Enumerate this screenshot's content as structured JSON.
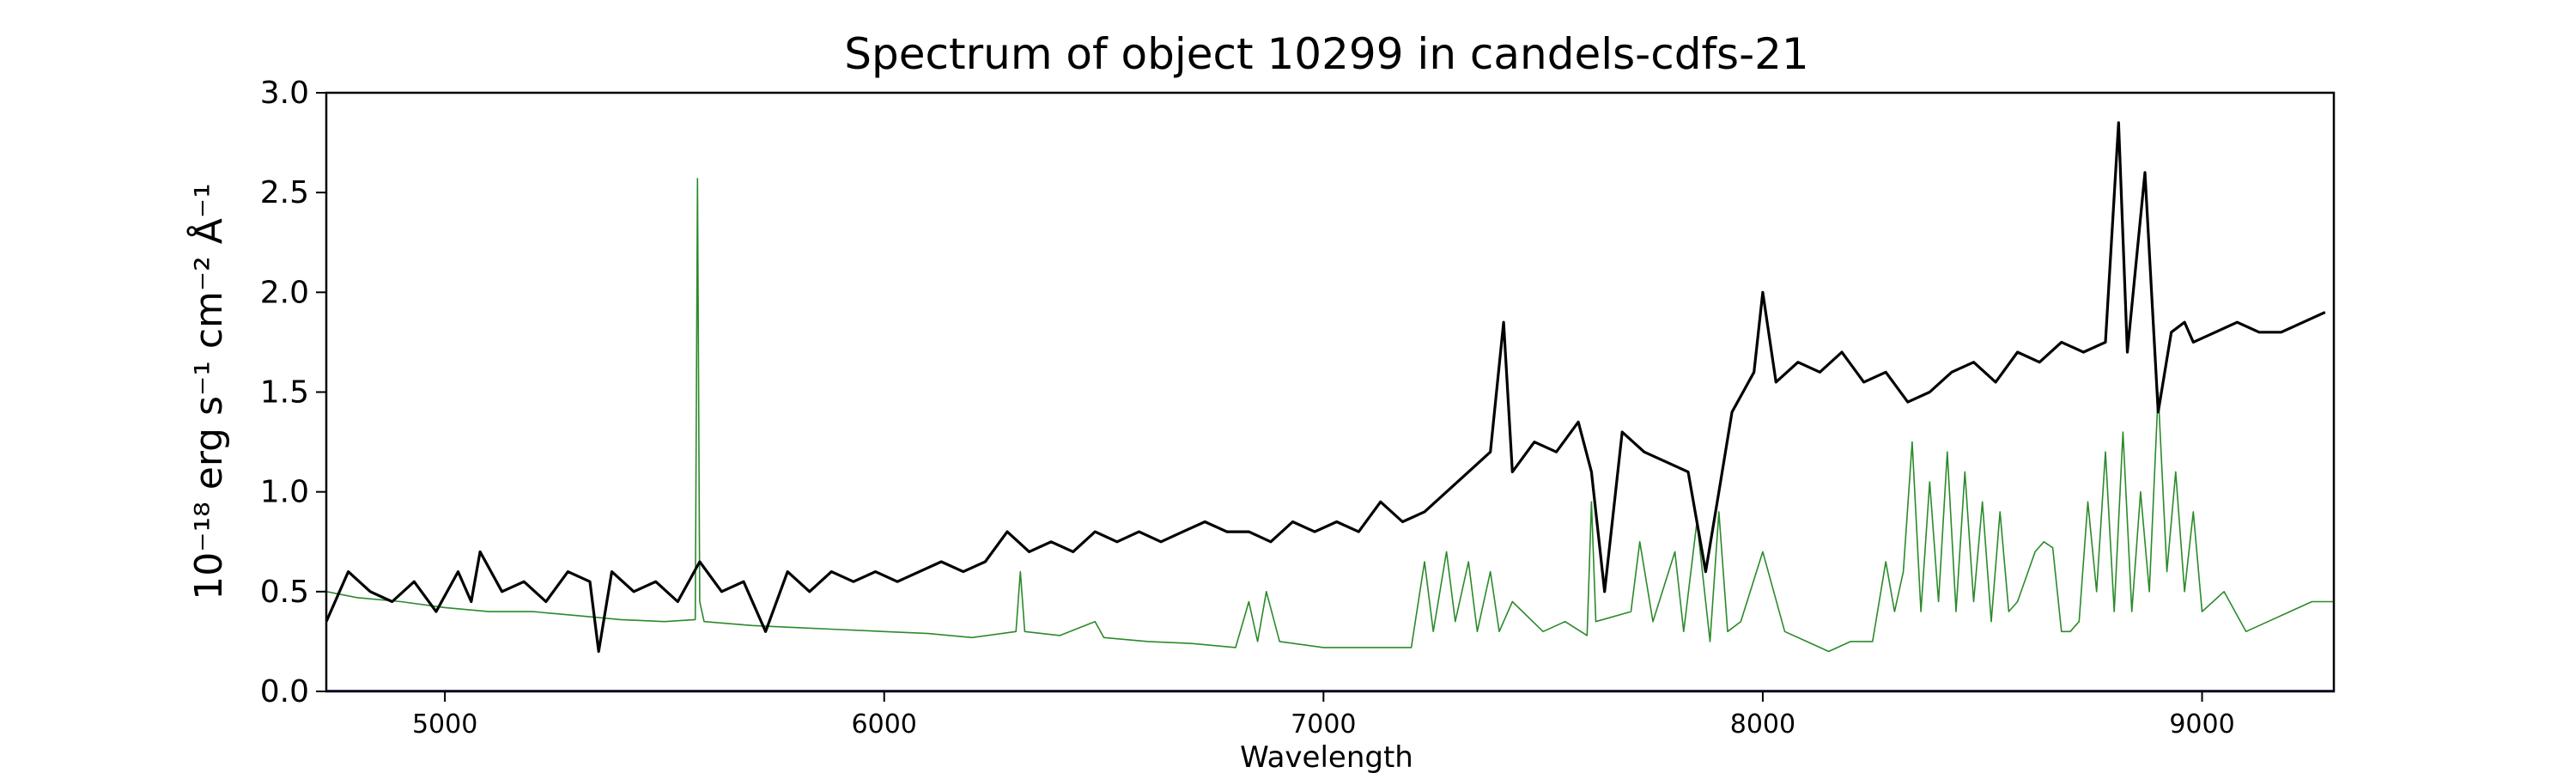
{
  "chart_data": {
    "type": "line",
    "title": "Spectrum of object 10299 in candels-cdfs-21",
    "xlabel": "Wavelength",
    "ylabel": "10⁻¹⁸ erg s⁻¹ cm⁻² Å⁻¹",
    "xlim": [
      4730,
      9300
    ],
    "ylim": [
      0,
      3.0
    ],
    "xticks": [
      5000,
      6000,
      7000,
      8000,
      9000
    ],
    "yticks": [
      0.0,
      0.5,
      1.0,
      1.5,
      2.0,
      2.5,
      3.0
    ],
    "ytick_labels": [
      "0.0",
      "0.5",
      "1.0",
      "1.5",
      "2.0",
      "2.5",
      "3.0"
    ],
    "grid": false,
    "legend": "none",
    "series": [
      {
        "color": "#000000",
        "role": "flux",
        "x": [
          4730,
          4780,
          4830,
          4880,
          4930,
          4980,
          5030,
          5060,
          5080,
          5130,
          5180,
          5230,
          5280,
          5330,
          5350,
          5380,
          5430,
          5480,
          5530,
          5580,
          5630,
          5680,
          5730,
          5780,
          5830,
          5880,
          5930,
          5980,
          6030,
          6080,
          6130,
          6180,
          6230,
          6280,
          6330,
          6380,
          6430,
          6480,
          6530,
          6580,
          6630,
          6680,
          6730,
          6780,
          6830,
          6880,
          6930,
          6980,
          7030,
          7080,
          7130,
          7180,
          7230,
          7280,
          7330,
          7380,
          7410,
          7430,
          7480,
          7530,
          7580,
          7610,
          7640,
          7680,
          7730,
          7780,
          7830,
          7870,
          7900,
          7930,
          7980,
          8000,
          8030,
          8080,
          8130,
          8180,
          8230,
          8280,
          8330,
          8380,
          8430,
          8480,
          8530,
          8580,
          8630,
          8680,
          8730,
          8780,
          8810,
          8830,
          8870,
          8900,
          8930,
          8960,
          8980,
          9030,
          9080,
          9130,
          9180,
          9230,
          9280
        ],
        "values": [
          0.35,
          0.6,
          0.5,
          0.45,
          0.55,
          0.4,
          0.6,
          0.45,
          0.7,
          0.5,
          0.55,
          0.45,
          0.6,
          0.55,
          0.2,
          0.6,
          0.5,
          0.55,
          0.45,
          0.65,
          0.5,
          0.55,
          0.3,
          0.6,
          0.5,
          0.6,
          0.55,
          0.6,
          0.55,
          0.6,
          0.65,
          0.6,
          0.65,
          0.8,
          0.7,
          0.75,
          0.7,
          0.8,
          0.75,
          0.8,
          0.75,
          0.8,
          0.85,
          0.8,
          0.8,
          0.75,
          0.85,
          0.8,
          0.85,
          0.8,
          0.95,
          0.85,
          0.9,
          1.0,
          1.1,
          1.2,
          1.85,
          1.1,
          1.25,
          1.2,
          1.35,
          1.1,
          0.5,
          1.3,
          1.2,
          1.15,
          1.1,
          0.6,
          1.0,
          1.4,
          1.6,
          2.0,
          1.55,
          1.65,
          1.6,
          1.7,
          1.55,
          1.6,
          1.45,
          1.5,
          1.6,
          1.65,
          1.55,
          1.7,
          1.65,
          1.75,
          1.7,
          1.75,
          2.85,
          1.7,
          2.6,
          1.4,
          1.8,
          1.85,
          1.75,
          1.8,
          1.85,
          1.8,
          1.8,
          1.85,
          1.9
        ]
      },
      {
        "color": "#2b8a2b",
        "role": "error",
        "x": [
          4730,
          4800,
          4900,
          5000,
          5100,
          5200,
          5300,
          5400,
          5500,
          5570,
          5575,
          5580,
          5590,
          5700,
          5800,
          5900,
          6000,
          6100,
          6200,
          6300,
          6310,
          6320,
          6400,
          6480,
          6500,
          6600,
          6700,
          6800,
          6830,
          6850,
          6870,
          6900,
          7000,
          7100,
          7200,
          7230,
          7250,
          7280,
          7300,
          7330,
          7350,
          7380,
          7400,
          7430,
          7500,
          7550,
          7600,
          7610,
          7620,
          7700,
          7720,
          7750,
          7800,
          7820,
          7850,
          7880,
          7900,
          7920,
          7950,
          8000,
          8050,
          8100,
          8150,
          8200,
          8250,
          8280,
          8300,
          8320,
          8340,
          8360,
          8380,
          8400,
          8420,
          8440,
          8460,
          8480,
          8500,
          8520,
          8540,
          8560,
          8580,
          8620,
          8640,
          8660,
          8680,
          8700,
          8720,
          8740,
          8760,
          8780,
          8800,
          8820,
          8840,
          8860,
          8880,
          8900,
          8920,
          8940,
          8960,
          8980,
          9000,
          9050,
          9100,
          9150,
          9200,
          9250,
          9300
        ],
        "values": [
          0.5,
          0.47,
          0.45,
          0.42,
          0.4,
          0.4,
          0.38,
          0.36,
          0.35,
          0.36,
          2.57,
          0.45,
          0.35,
          0.33,
          0.32,
          0.31,
          0.3,
          0.29,
          0.27,
          0.3,
          0.6,
          0.3,
          0.28,
          0.35,
          0.27,
          0.25,
          0.24,
          0.22,
          0.45,
          0.25,
          0.5,
          0.25,
          0.22,
          0.22,
          0.22,
          0.65,
          0.3,
          0.7,
          0.35,
          0.65,
          0.3,
          0.6,
          0.3,
          0.45,
          0.3,
          0.35,
          0.28,
          0.95,
          0.35,
          0.4,
          0.75,
          0.35,
          0.7,
          0.3,
          0.85,
          0.25,
          0.9,
          0.3,
          0.35,
          0.7,
          0.3,
          0.25,
          0.2,
          0.25,
          0.25,
          0.65,
          0.4,
          0.6,
          1.25,
          0.4,
          1.05,
          0.45,
          1.2,
          0.4,
          1.1,
          0.45,
          0.95,
          0.35,
          0.9,
          0.4,
          0.45,
          0.7,
          0.75,
          0.72,
          0.3,
          0.3,
          0.35,
          0.95,
          0.5,
          1.2,
          0.4,
          1.3,
          0.4,
          1.0,
          0.5,
          1.5,
          0.6,
          1.1,
          0.5,
          0.9,
          0.4,
          0.5,
          0.3,
          0.35,
          0.4,
          0.45,
          0.45
        ]
      },
      {
        "color": "#00008b",
        "role": "zero-line",
        "x": [
          4730,
          9300
        ],
        "values": [
          0.0,
          0.0
        ]
      }
    ]
  }
}
